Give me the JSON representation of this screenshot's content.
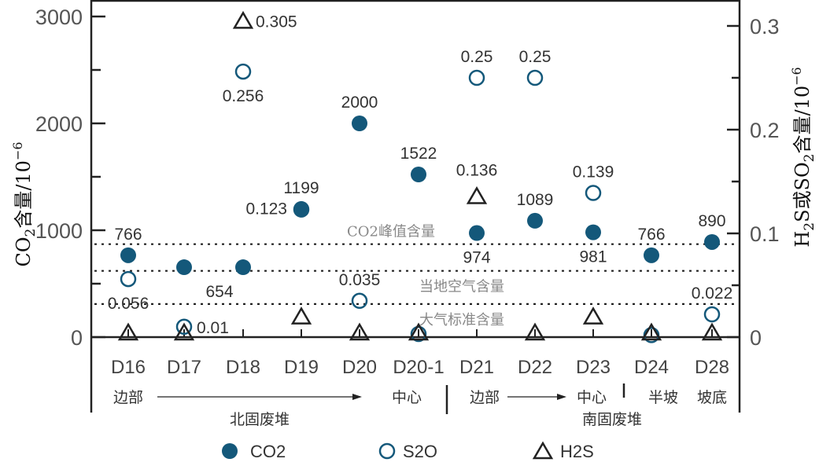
{
  "chart_data": {
    "type": "scatter",
    "categories": [
      "D16",
      "D17",
      "D18",
      "D19",
      "D20",
      "D20-1",
      "D21",
      "D22",
      "D23",
      "D24",
      "D28"
    ],
    "left_axis": {
      "label_main": "CO",
      "label_sub": "2",
      "label_rest": "含量/10",
      "label_sup": "−6",
      "ylim": [
        0,
        3000
      ],
      "ticks": [
        "0",
        "1000",
        "2000",
        "3000"
      ]
    },
    "right_axis": {
      "label_main": "H",
      "label_sub1": "2",
      "label_mid": "S或SO",
      "label_sub2": "2",
      "label_rest": "含量/10",
      "label_sup": "−6",
      "ylim": [
        0,
        0.33
      ],
      "ticks": [
        "0",
        "0.1",
        "0.2",
        "0.3"
      ]
    },
    "series": [
      {
        "name": "CO2",
        "legend": "CO2",
        "axis": "left",
        "color": "#14587a",
        "values": [
          766,
          654,
          654,
          1199,
          2000,
          1522,
          974,
          1089,
          981,
          766,
          890
        ],
        "labels": [
          "766",
          "",
          "654",
          "1199",
          "2000",
          "1522",
          "974",
          "1089",
          "981",
          "766",
          "890"
        ],
        "label_pos": [
          "above",
          "",
          "below-left",
          "above",
          "above",
          "above",
          "below",
          "above",
          "below",
          "above",
          "above"
        ]
      },
      {
        "name": "SO2",
        "legend": "S2O",
        "axis": "right",
        "color": "#14587a",
        "values": [
          0.056,
          0.01,
          0.256,
          0.123,
          0.035,
          0.003,
          0.25,
          0.25,
          0.139,
          0.002,
          0.022
        ],
        "labels": [
          "0.056",
          "0.01",
          "0.256",
          "0.123",
          "0.035",
          "",
          "0.25",
          "0.25",
          "0.139",
          "",
          "0.022"
        ],
        "label_pos": [
          "below",
          "right",
          "below",
          "left",
          "above",
          "",
          "above",
          "above",
          "above",
          "",
          "above"
        ]
      },
      {
        "name": "H2S",
        "legend": "H2S",
        "axis": "right",
        "color": "#222222",
        "values": [
          0,
          0,
          0.305,
          0.02,
          0,
          0,
          0.136,
          0,
          0.02,
          0,
          0
        ],
        "labels": [
          "",
          "",
          "0.305",
          "",
          "",
          "",
          "0.136",
          "",
          "",
          "",
          ""
        ],
        "label_pos": [
          "",
          "",
          "right",
          "",
          "",
          "",
          "above",
          "",
          "",
          "",
          ""
        ]
      }
    ],
    "reference_lines": [
      {
        "label": "CO2峰值含量",
        "value": 870
      },
      {
        "label": "当地空气含量",
        "value": 620
      },
      {
        "label": "大气标准含量",
        "value": 310
      }
    ],
    "annotations": {
      "north_edge": "边部",
      "north_center": "中心",
      "north_group": "北固废堆",
      "south_edge": "边部",
      "south_center": "中心",
      "south_group": "南固废堆",
      "half_slope": "半坡",
      "slope_bottom": "坡底"
    },
    "legend_placement": "bottom"
  }
}
